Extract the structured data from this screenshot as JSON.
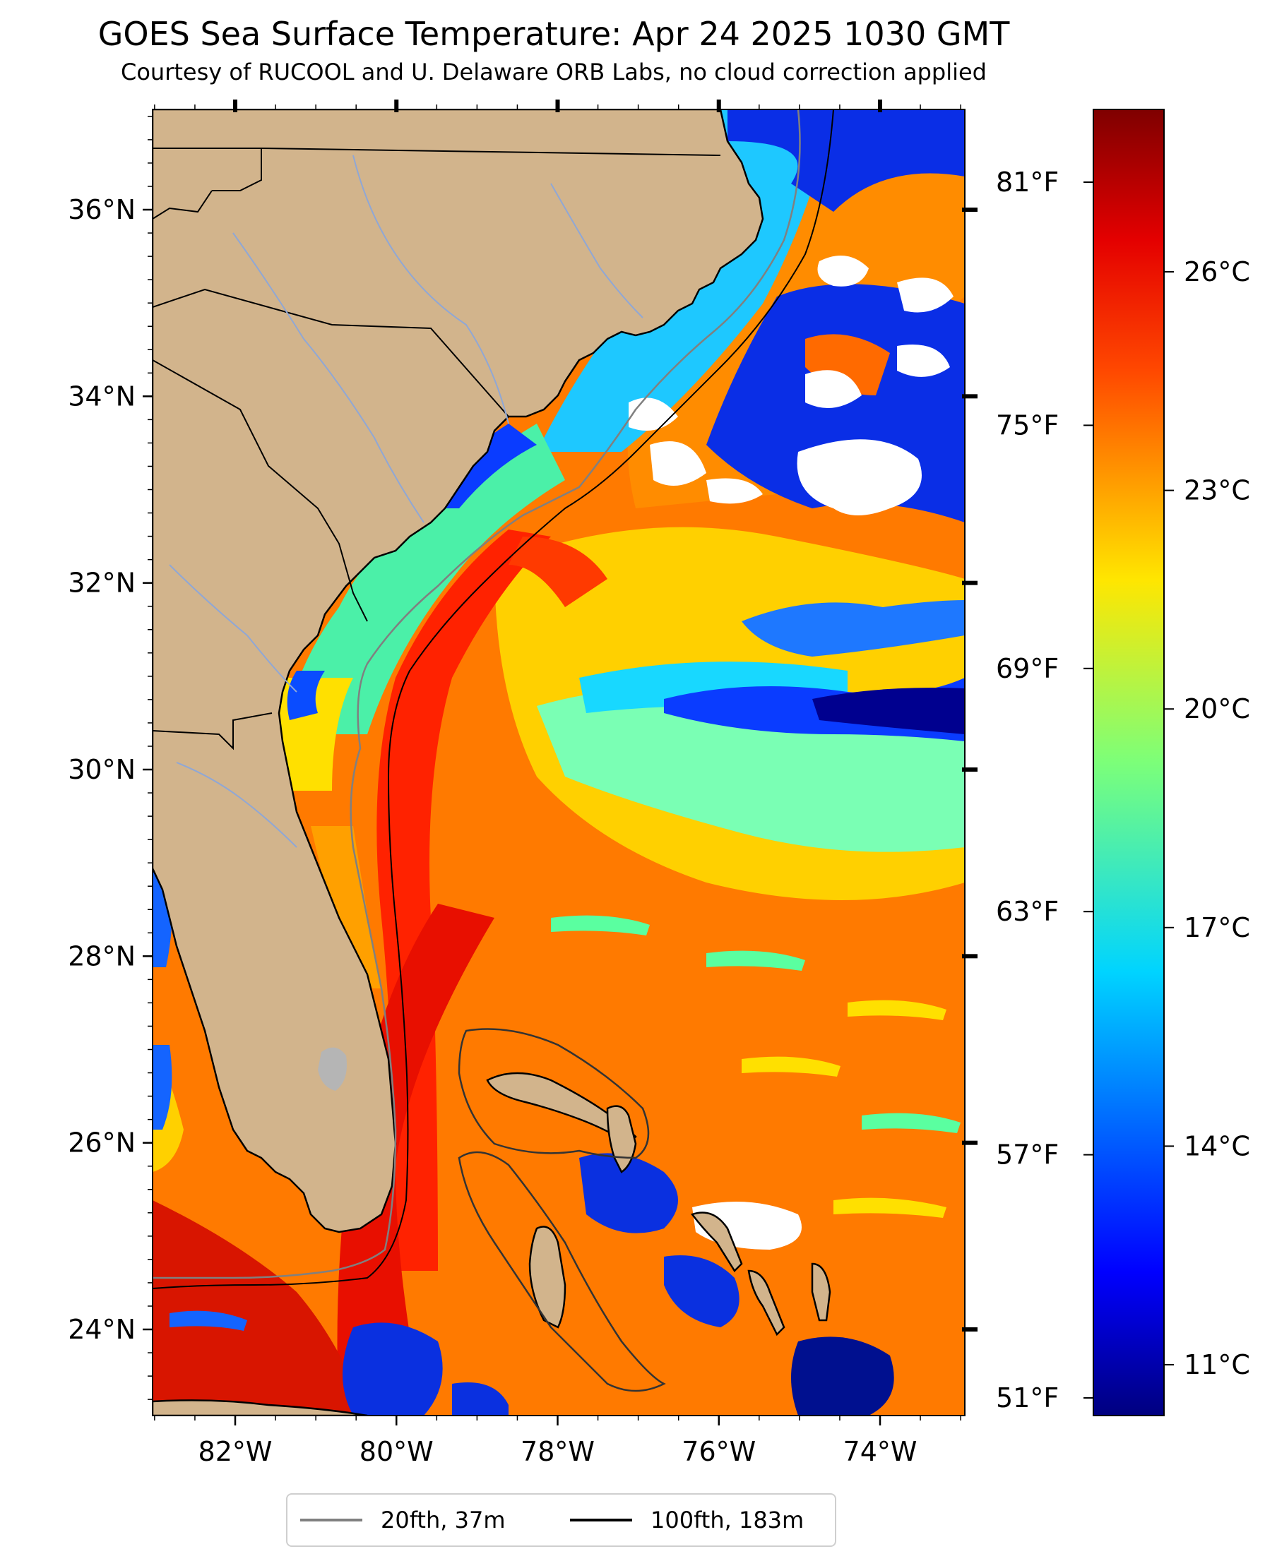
{
  "title": "GOES Sea Surface Temperature: Apr 24 2025 1030 GMT",
  "subtitle": "Courtesy of RUCOOL and U. Delaware ORB Labs, no cloud correction applied",
  "map": {
    "lat_labels": [
      {
        "value": 36,
        "text": "36°N"
      },
      {
        "value": 34,
        "text": "34°N"
      },
      {
        "value": 32,
        "text": "32°N"
      },
      {
        "value": 30,
        "text": "30°N"
      },
      {
        "value": 28,
        "text": "28°N"
      },
      {
        "value": 26,
        "text": "26°N"
      },
      {
        "value": 24,
        "text": "24°N"
      }
    ],
    "lon_labels": [
      {
        "value": -82,
        "text": "82°W"
      },
      {
        "value": -80,
        "text": "80°W"
      },
      {
        "value": -78,
        "text": "78°W"
      },
      {
        "value": -76,
        "text": "76°W"
      },
      {
        "value": -74,
        "text": "74°W"
      }
    ],
    "land_color": "#d2b48c",
    "lake_color": "#b5b5b5",
    "cloud_color": "#ffffff"
  },
  "colorbar": {
    "celsius_labels": [
      {
        "value": 26,
        "text": "26°C"
      },
      {
        "value": 23,
        "text": "23°C"
      },
      {
        "value": 20,
        "text": "20°C"
      },
      {
        "value": 17,
        "text": "17°C"
      },
      {
        "value": 14,
        "text": "14°C"
      },
      {
        "value": 11,
        "text": "11°C"
      }
    ],
    "fahrenheit_labels": [
      {
        "value": 81,
        "text": "81°F"
      },
      {
        "value": 75,
        "text": "75°F"
      },
      {
        "value": 69,
        "text": "69°F"
      },
      {
        "value": 63,
        "text": "63°F"
      },
      {
        "value": 57,
        "text": "57°F"
      },
      {
        "value": 51,
        "text": "51°F"
      }
    ],
    "colormap": "jet"
  },
  "legend": [
    {
      "label": "20fth, 37m",
      "color": "#808080"
    },
    {
      "label": "100fth, 183m",
      "color": "#000000"
    }
  ]
}
